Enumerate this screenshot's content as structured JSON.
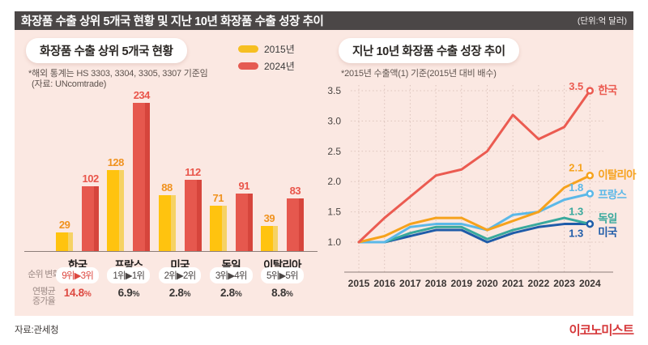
{
  "titlebar": {
    "title": "화장품 수출 상위 5개국 현황 및 지난 10년 화장품 수출 성장 추이",
    "unit": "(단위:억 달러)"
  },
  "left_panel": {
    "header": "화장품 수출 상위 5개국 현황",
    "note_line1": "*해외 통계는 HS 3303, 3304, 3305, 3307 기준임",
    "note_line2": "(자료: UNcomtrade)",
    "legend": [
      {
        "label": "2015년",
        "color": "#F6BF22"
      },
      {
        "label": "2024년",
        "color": "#E55B52"
      }
    ],
    "rank_row_label": "순위 변화",
    "growth_row_label_line1": "연평균",
    "growth_row_label_line2": "증가율"
  },
  "right_panel": {
    "header": "지난 10년 화장품 수출 성장 추이",
    "note": "*2015년 수출액(1) 기준(2015년 대비 배수)"
  },
  "footer": {
    "source": "자료:관세청",
    "logo": "이코노미스트"
  },
  "chart_data": [
    {
      "type": "bar",
      "title": "화장품 수출 상위 5개국 현황",
      "unit": "억 달러",
      "categories": [
        "한국",
        "프랑스",
        "미국",
        "독일",
        "이탈리아"
      ],
      "series": [
        {
          "name": "2015년",
          "color": "#FFC30F",
          "edge_color": "#F6D264",
          "label_color": "#F0921E",
          "values": [
            29,
            128,
            88,
            71,
            39
          ]
        },
        {
          "name": "2024년",
          "color": "#E6584E",
          "edge_color": "#D6453C",
          "label_color": "#E9554A",
          "values": [
            102,
            234,
            112,
            91,
            83
          ]
        }
      ],
      "rank_change_label": "순위 변화",
      "rank_changes": [
        "9위▶3위",
        "1위▶1위",
        "2위▶2위",
        "3위▶4위",
        "5위▶5위"
      ],
      "rank_highlight": [
        true,
        false,
        false,
        false,
        false
      ],
      "cagr_label": "연평균 증가율",
      "cagr": [
        "14.8%",
        "6.9%",
        "2.8%",
        "2.8%",
        "8.8%"
      ],
      "cagr_highlight": [
        true,
        false,
        false,
        false,
        false
      ]
    },
    {
      "type": "line",
      "title": "지난 10년 화장품 수출 성장 추이",
      "x": [
        2015,
        2016,
        2017,
        2018,
        2019,
        2020,
        2021,
        2022,
        2023,
        2024
      ],
      "ylim": [
        1.0,
        3.5
      ],
      "yticks": [
        1.0,
        1.5,
        2.0,
        2.5,
        3.0,
        3.5
      ],
      "grid": "dotted",
      "legend_position": "right-end-labels",
      "series": [
        {
          "name": "한국",
          "color": "#EB5B51",
          "end_label": "3.5",
          "values": [
            1.0,
            1.4,
            1.75,
            2.1,
            2.2,
            2.5,
            3.1,
            2.7,
            2.9,
            3.5
          ]
        },
        {
          "name": "이탈리아",
          "color": "#F6A21C",
          "end_label": "2.1",
          "values": [
            1.0,
            1.1,
            1.3,
            1.4,
            1.4,
            1.2,
            1.35,
            1.5,
            1.9,
            2.1
          ]
        },
        {
          "name": "프랑스",
          "color": "#5BB8E8",
          "end_label": "1.8",
          "values": [
            1.0,
            1.0,
            1.25,
            1.3,
            1.3,
            1.2,
            1.45,
            1.5,
            1.7,
            1.8
          ]
        },
        {
          "name": "독일",
          "color": "#39A99D",
          "end_label": "1.3",
          "values": [
            1.0,
            1.0,
            1.15,
            1.25,
            1.25,
            1.05,
            1.2,
            1.3,
            1.4,
            1.3
          ]
        },
        {
          "name": "미국",
          "color": "#1F5CA9",
          "end_label": "1.3",
          "values": [
            1.0,
            1.0,
            1.1,
            1.2,
            1.2,
            1.0,
            1.15,
            1.25,
            1.3,
            1.3
          ]
        }
      ]
    }
  ]
}
